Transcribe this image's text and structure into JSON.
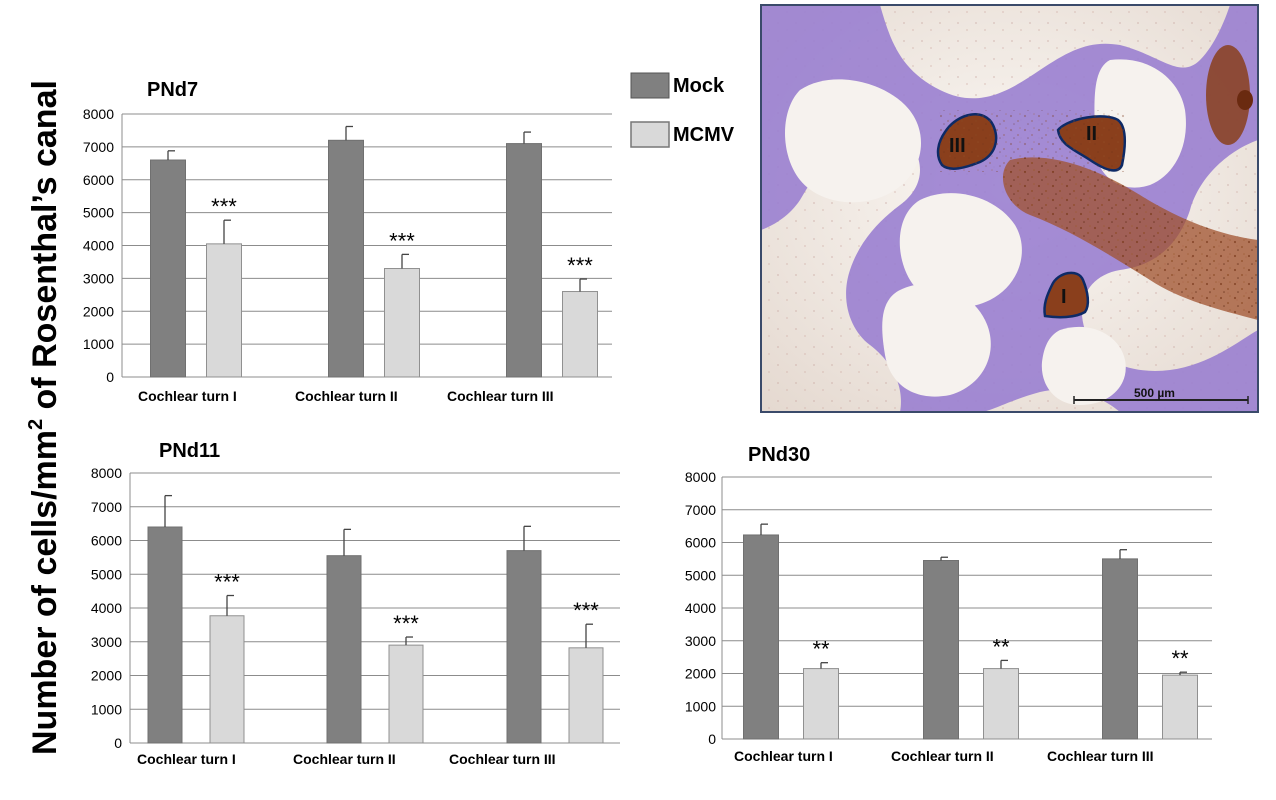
{
  "y_axis_label": {
    "prefix": "Number  of cells/mm",
    "superscript": "2",
    "suffix": " of Rosenthal’s canal"
  },
  "legend": [
    {
      "label": "Mock",
      "color": "#808080"
    },
    {
      "label": "MCMV",
      "color": "#d9d9d9"
    }
  ],
  "micrograph": {
    "region_labels": [
      "III",
      "II",
      "I"
    ],
    "scale_bar_label": "500 µm",
    "tissue_color": "#9a7fd0",
    "stain_color": "#8a3f1c"
  },
  "colors": {
    "mock": "#808080",
    "mcmv": "#d9d9d9",
    "grid": "#8c8c8c"
  },
  "chart_data": [
    {
      "type": "bar",
      "title": "PNd7",
      "categories": [
        "Cochlear turn I",
        "Cochlear turn II",
        "Cochlear turn III"
      ],
      "ylim": [
        0,
        8000
      ],
      "yticks": [
        0,
        1000,
        2000,
        3000,
        4000,
        5000,
        6000,
        7000,
        8000
      ],
      "grid": true,
      "series": [
        {
          "name": "Mock",
          "values": [
            6600,
            7200,
            7100
          ],
          "errors": [
            280,
            420,
            350
          ]
        },
        {
          "name": "MCMV",
          "values": [
            4050,
            3300,
            2600
          ],
          "errors": [
            720,
            430,
            380
          ]
        }
      ],
      "significance": [
        "***",
        "***",
        "***"
      ]
    },
    {
      "type": "bar",
      "title": "PNd11",
      "categories": [
        "Cochlear turn I",
        "Cochlear turn II",
        "Cochlear turn III"
      ],
      "ylim": [
        0,
        8000
      ],
      "yticks": [
        0,
        1000,
        2000,
        3000,
        4000,
        5000,
        6000,
        7000,
        8000
      ],
      "grid": true,
      "series": [
        {
          "name": "Mock",
          "values": [
            6400,
            5550,
            5700
          ],
          "errors": [
            930,
            780,
            720
          ]
        },
        {
          "name": "MCMV",
          "values": [
            3770,
            2900,
            2820
          ],
          "errors": [
            600,
            240,
            700
          ]
        }
      ],
      "significance": [
        "***",
        "***",
        "***"
      ]
    },
    {
      "type": "bar",
      "title": "PNd30",
      "categories": [
        "Cochlear turn I",
        "Cochlear turn II",
        "Cochlear turn III"
      ],
      "ylim": [
        0,
        8000
      ],
      "yticks": [
        0,
        1000,
        2000,
        3000,
        4000,
        5000,
        6000,
        7000,
        8000
      ],
      "grid": true,
      "series": [
        {
          "name": "Mock",
          "values": [
            6230,
            5450,
            5500
          ],
          "errors": [
            330,
            100,
            280
          ]
        },
        {
          "name": "MCMV",
          "values": [
            2150,
            2150,
            1950
          ],
          "errors": [
            180,
            250,
            90
          ]
        }
      ],
      "significance": [
        "**",
        "**",
        "**"
      ]
    }
  ]
}
